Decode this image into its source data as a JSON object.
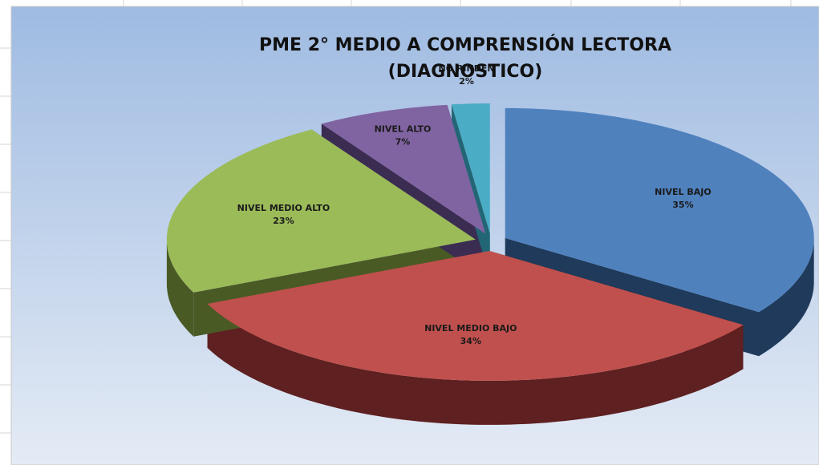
{
  "chart_data": {
    "type": "pie",
    "title": "PME 2° MEDIO A COMPRENSIÓN LECTORA (DIAGNOSTICO)",
    "categories": [
      "NIVEL BAJO",
      "NIVEL MEDIO BAJO",
      "NIVEL MEDIO ALTO",
      "NIVEL ALTO",
      "NO RINDEN"
    ],
    "values": [
      35,
      34,
      23,
      7,
      2
    ],
    "value_labels": [
      "35%",
      "34%",
      "23%",
      "7%",
      "2%"
    ],
    "colors": [
      "#4f81bd",
      "#c0504d",
      "#9bbb59",
      "#8064a2",
      "#4bacc6"
    ],
    "side_colors": [
      "#1f3a5a",
      "#5e2020",
      "#4a5a25",
      "#3b2c52",
      "#226676"
    ]
  }
}
